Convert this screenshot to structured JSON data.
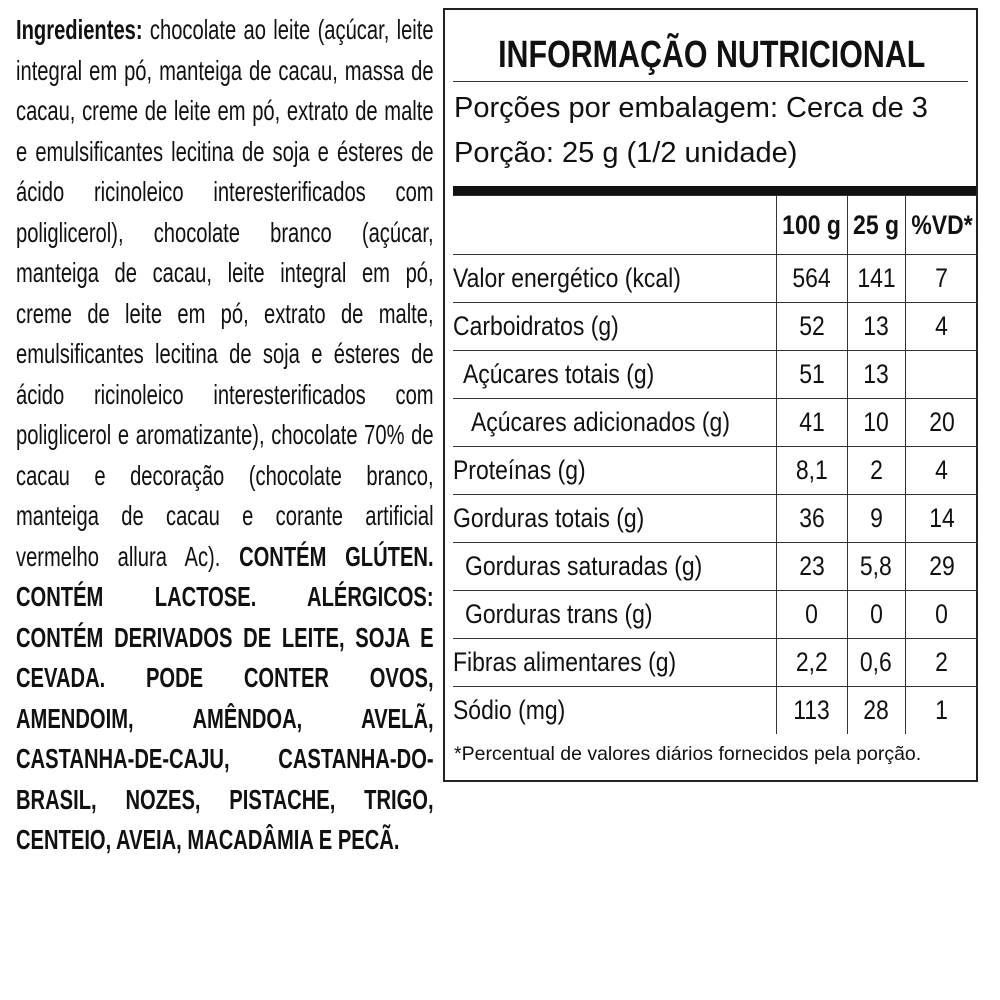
{
  "ingredients": {
    "label": "Ingredientes:",
    "text": "chocolate ao leite (açúcar, leite integral em pó, manteiga de cacau, massa de cacau, creme de leite em pó, extrato de malte e emulsificantes lecitina de soja e ésteres de ácido ricinoleico interesterificados com poliglicerol), chocolate branco (açúcar, manteiga de cacau, leite integral em pó, creme de leite em pó, extrato de malte, emulsificantes lecitina de soja e ésteres de ácido ricinoleico interesterificados com poliglicerol e aromatizante), chocolate 70% de cacau e decoração (chocolate branco, manteiga de cacau e corante artificial vermelho allura Ac).",
    "allergens": "CONTÉM GLÚTEN. CONTÉM LACTOSE. ALÉRGICOS: CONTÉM DERIVADOS DE LEITE, SOJA E CEVADA. PODE CONTER OVOS, AMENDOIM, AMÊNDOA, AVELÃ, CASTANHA-DE-CAJU, CASTANHA-DO-BRASIL, NOZES, PISTACHE, TRIGO, CENTEIO, AVEIA, MACADÂMIA E PECÃ."
  },
  "nutrition": {
    "title": "INFORMAÇÃO NUTRICIONAL",
    "servings": "Porções por embalagem: Cerca de 3",
    "serving_size": "Porção: 25 g (1/2 unidade)",
    "columns": [
      "100 g",
      "25 g",
      "%VD*"
    ],
    "rows": [
      [
        "Valor energético (kcal)",
        "564",
        "141",
        "7"
      ],
      [
        "Carboidratos (g)",
        "52",
        "13",
        "4"
      ],
      [
        "Açúcares totais (g)",
        "51",
        "13",
        null
      ],
      [
        "Açúcares adicionados (g)",
        "41",
        "10",
        "20"
      ],
      [
        "Proteínas (g)",
        "8,1",
        "2",
        "4"
      ],
      [
        "Gorduras totais (g)",
        "36",
        "9",
        "14"
      ],
      [
        "Gorduras saturadas (g)",
        "23",
        "5,8",
        "29"
      ],
      [
        "Gorduras trans (g)",
        "0",
        "0",
        "0"
      ],
      [
        "Fibras alimentares (g)",
        "2,2",
        "0,6",
        "2"
      ],
      [
        "Sódio (mg)",
        "113",
        "28",
        "1"
      ]
    ],
    "footnote": "*Percentual de valores diários fornecidos pela porção."
  }
}
